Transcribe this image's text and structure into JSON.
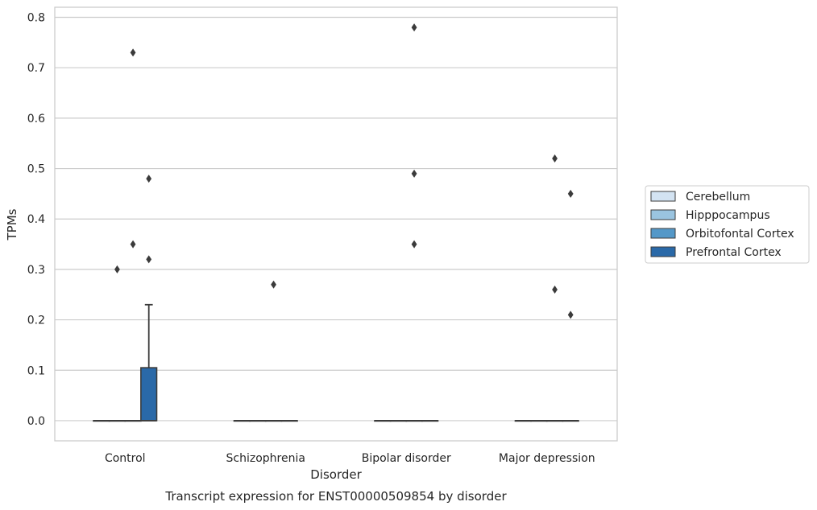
{
  "chart_data": {
    "type": "boxplot",
    "title": "",
    "caption": "Transcript expression for ENST00000509854 by disorder",
    "xlabel": "Disorder",
    "ylabel": "TPMs",
    "ylim": [
      -0.04,
      0.82
    ],
    "yticks": [
      0.0,
      0.1,
      0.2,
      0.3,
      0.4,
      0.5,
      0.6,
      0.7,
      0.8
    ],
    "ytick_labels": [
      "0.0",
      "0.1",
      "0.2",
      "0.3",
      "0.4",
      "0.5",
      "0.6",
      "0.7",
      "0.8"
    ],
    "grid": "horizontal",
    "legend_position": "right",
    "categories": [
      "Control",
      "Schizophrenia",
      "Bipolar disorder",
      "Major depression"
    ],
    "series": [
      {
        "name": "Cerebellum",
        "color": "#d3e3f2",
        "boxes": [
          {
            "q1": 0,
            "median": 0,
            "q3": 0,
            "whisker_low": 0,
            "whisker_high": 0,
            "outliers": []
          },
          {
            "q1": 0,
            "median": 0,
            "q3": 0,
            "whisker_low": 0,
            "whisker_high": 0,
            "outliers": []
          },
          {
            "q1": 0,
            "median": 0,
            "q3": 0,
            "whisker_low": 0,
            "whisker_high": 0,
            "outliers": []
          },
          {
            "q1": 0,
            "median": 0,
            "q3": 0,
            "whisker_low": 0,
            "whisker_high": 0,
            "outliers": []
          }
        ]
      },
      {
        "name": "Hipppocampus",
        "color": "#9ac4e0",
        "boxes": [
          {
            "q1": 0,
            "median": 0,
            "q3": 0,
            "whisker_low": 0,
            "whisker_high": 0,
            "outliers": [
              0.3
            ]
          },
          {
            "q1": 0,
            "median": 0,
            "q3": 0,
            "whisker_low": 0,
            "whisker_high": 0,
            "outliers": []
          },
          {
            "q1": 0,
            "median": 0,
            "q3": 0,
            "whisker_low": 0,
            "whisker_high": 0,
            "outliers": []
          },
          {
            "q1": 0,
            "median": 0,
            "q3": 0,
            "whisker_low": 0,
            "whisker_high": 0,
            "outliers": []
          }
        ]
      },
      {
        "name": "Orbitofontal Cortex",
        "color": "#5498c8",
        "boxes": [
          {
            "q1": 0,
            "median": 0,
            "q3": 0,
            "whisker_low": 0,
            "whisker_high": 0,
            "outliers": [
              0.35,
              0.73
            ]
          },
          {
            "q1": 0,
            "median": 0,
            "q3": 0,
            "whisker_low": 0,
            "whisker_high": 0,
            "outliers": [
              0.27
            ]
          },
          {
            "q1": 0,
            "median": 0,
            "q3": 0,
            "whisker_low": 0,
            "whisker_high": 0,
            "outliers": [
              0.35,
              0.78,
              0.49
            ]
          },
          {
            "q1": 0,
            "median": 0,
            "q3": 0,
            "whisker_low": 0,
            "whisker_high": 0,
            "outliers": [
              0.26,
              0.52
            ]
          }
        ]
      },
      {
        "name": "Prefrontal Cortex",
        "color": "#2a69a8",
        "boxes": [
          {
            "q1": 0,
            "median": 0,
            "q3": 0.105,
            "whisker_low": 0,
            "whisker_high": 0.23,
            "outliers": [
              0.32,
              0.48
            ]
          },
          {
            "q1": 0,
            "median": 0,
            "q3": 0,
            "whisker_low": 0,
            "whisker_high": 0,
            "outliers": []
          },
          {
            "q1": 0,
            "median": 0,
            "q3": 0,
            "whisker_low": 0,
            "whisker_high": 0,
            "outliers": []
          },
          {
            "q1": 0,
            "median": 0,
            "q3": 0,
            "whisker_low": 0,
            "whisker_high": 0,
            "outliers": [
              0.21,
              0.45
            ]
          }
        ]
      }
    ]
  }
}
